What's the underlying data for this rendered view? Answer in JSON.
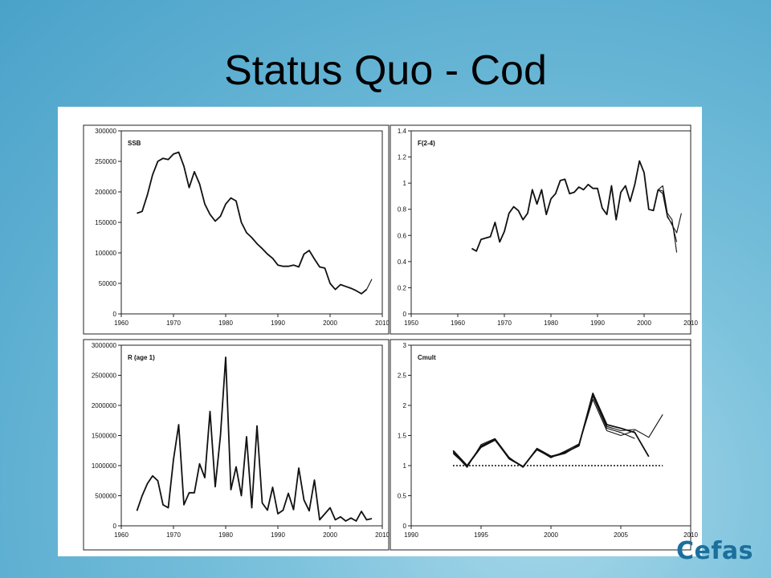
{
  "slide": {
    "title": "Status Quo - Cod",
    "logo_text": "Cefas"
  },
  "chart_data": [
    {
      "type": "line",
      "label": "SSB",
      "ylim": [
        0,
        300000
      ],
      "xlim": [
        1960,
        2010
      ],
      "xticks": [
        1960,
        1970,
        1980,
        1990,
        2000,
        2010
      ],
      "yticks": [
        "0",
        "50000",
        "100000",
        "150000",
        "200000",
        "250000",
        "300000"
      ],
      "ytick_values": [
        0,
        50000,
        100000,
        150000,
        200000,
        250000,
        300000
      ],
      "series": [
        {
          "x": [
            1963,
            1964,
            1965,
            1966,
            1967,
            1968,
            1969,
            1970,
            1971,
            1972,
            1973,
            1974,
            1975,
            1976,
            1977,
            1978,
            1979,
            1980,
            1981,
            1982,
            1983,
            1984,
            1985,
            1986,
            1987,
            1988,
            1989,
            1990,
            1991,
            1992,
            1993,
            1994,
            1995,
            1996,
            1997,
            1998,
            1999,
            2000,
            2001,
            2002,
            2003,
            2004,
            2005,
            2006,
            2007
          ],
          "y": [
            165000,
            168000,
            195000,
            228000,
            250000,
            255000,
            253000,
            262000,
            265000,
            242000,
            207000,
            233000,
            213000,
            180000,
            163000,
            152000,
            160000,
            180000,
            190000,
            185000,
            150000,
            133000,
            125000,
            115000,
            107000,
            98000,
            91000,
            80000,
            78000,
            78000,
            80000,
            77000,
            98000,
            104000,
            90000,
            77000,
            75000,
            50000,
            40000,
            48000,
            45000,
            42000,
            38000,
            33000,
            40000
          ]
        },
        {
          "x": [
            2007,
            2008
          ],
          "y": [
            40000,
            57000
          ]
        }
      ]
    },
    {
      "type": "line",
      "label": "F(2-4)",
      "ylim": [
        0,
        1.4
      ],
      "xlim": [
        1950,
        2010
      ],
      "xticks": [
        1950,
        1960,
        1970,
        1980,
        1990,
        2000,
        2010
      ],
      "yticks": [
        "0",
        "0.2",
        "0.4",
        "0.6",
        "0.8",
        "1",
        "1.2",
        "1.4"
      ],
      "ytick_values": [
        0,
        0.2,
        0.4,
        0.6,
        0.8,
        1.0,
        1.2,
        1.4
      ],
      "series": [
        {
          "x": [
            1963,
            1964,
            1965,
            1966,
            1967,
            1968,
            1969,
            1970,
            1971,
            1972,
            1973,
            1974,
            1975,
            1976,
            1977,
            1978,
            1979,
            1980,
            1981,
            1982,
            1983,
            1984,
            1985,
            1986,
            1987,
            1988,
            1989,
            1990,
            1991,
            1992,
            1993,
            1994,
            1995,
            1996,
            1997,
            1998,
            1999,
            2000,
            2001,
            2002,
            2003
          ],
          "y": [
            0.5,
            0.48,
            0.57,
            0.58,
            0.59,
            0.7,
            0.55,
            0.63,
            0.77,
            0.82,
            0.79,
            0.72,
            0.77,
            0.95,
            0.84,
            0.95,
            0.76,
            0.88,
            0.92,
            1.02,
            1.03,
            0.92,
            0.93,
            0.97,
            0.95,
            0.99,
            0.96,
            0.96,
            0.81,
            0.76,
            0.98,
            0.72,
            0.93,
            0.98,
            0.86,
            0.99,
            1.17,
            1.08,
            0.8,
            0.79,
            0.95
          ]
        },
        {
          "x": [
            2003,
            2004,
            2005,
            2006,
            2007
          ],
          "y": [
            0.95,
            0.98,
            0.77,
            0.72,
            0.47
          ]
        },
        {
          "x": [
            2003,
            2004,
            2005,
            2006,
            2007
          ],
          "y": [
            0.95,
            0.92,
            0.74,
            0.69,
            0.55
          ]
        },
        {
          "x": [
            2003,
            2004,
            2005,
            2006,
            2007,
            2008
          ],
          "y": [
            0.95,
            0.94,
            0.75,
            0.68,
            0.62,
            0.77
          ]
        }
      ]
    },
    {
      "type": "line",
      "label": "R (age 1)",
      "ylim": [
        0,
        3000000
      ],
      "xlim": [
        1960,
        2010
      ],
      "xticks": [
        1960,
        1970,
        1980,
        1990,
        2000,
        2010
      ],
      "yticks": [
        "0",
        "500000",
        "1000000",
        "1500000",
        "2000000",
        "2500000",
        "3000000"
      ],
      "ytick_values": [
        0,
        500000,
        1000000,
        1500000,
        2000000,
        2500000,
        3000000
      ],
      "series": [
        {
          "x": [
            1963,
            1964,
            1965,
            1966,
            1967,
            1968,
            1969,
            1970,
            1971,
            1972,
            1973,
            1974,
            1975,
            1976,
            1977,
            1978,
            1979,
            1980,
            1981,
            1982,
            1983,
            1984,
            1985,
            1986,
            1987,
            1988,
            1989,
            1990,
            1991,
            1992,
            1993,
            1994,
            1995,
            1996,
            1997,
            1998,
            1999,
            2000,
            2001,
            2002,
            2003,
            2004,
            2005,
            2006,
            2007,
            2008
          ],
          "y": [
            250000,
            500000,
            700000,
            830000,
            750000,
            350000,
            300000,
            1100000,
            1680000,
            350000,
            550000,
            550000,
            1030000,
            800000,
            1900000,
            650000,
            1500000,
            2800000,
            600000,
            980000,
            500000,
            1480000,
            300000,
            1660000,
            380000,
            260000,
            640000,
            200000,
            260000,
            540000,
            270000,
            960000,
            430000,
            250000,
            760000,
            100000,
            200000,
            300000,
            100000,
            150000,
            80000,
            130000,
            80000,
            240000,
            100000,
            120000
          ]
        }
      ]
    },
    {
      "type": "line",
      "label": "Cmult",
      "ylim": [
        0,
        3
      ],
      "xlim": [
        1990,
        2010
      ],
      "xticks": [
        1990,
        1995,
        2000,
        2005,
        2010
      ],
      "yticks": [
        "0",
        "0.5",
        "1",
        "1.5",
        "2",
        "2.5",
        "3"
      ],
      "ytick_values": [
        0,
        0.5,
        1.0,
        1.5,
        2.0,
        2.5,
        3.0
      ],
      "reference_line": {
        "y": 1.0,
        "x": [
          1993,
          2008
        ],
        "style": "dotted"
      },
      "series": [
        {
          "x": [
            1993,
            1994,
            1995,
            1996,
            1997,
            1998,
            1999,
            2000,
            2001,
            2002,
            2003,
            2004,
            2005,
            2006,
            2007
          ],
          "y": [
            1.25,
            1.0,
            1.32,
            1.43,
            1.12,
            0.98,
            1.28,
            1.15,
            1.22,
            1.33,
            2.2,
            1.68,
            1.62,
            1.55,
            1.15
          ]
        },
        {
          "x": [
            1993,
            1994,
            1995,
            1996,
            1997,
            1998,
            1999,
            2000,
            2001,
            2002,
            2003,
            2004,
            2005,
            2006
          ],
          "y": [
            1.22,
            0.97,
            1.35,
            1.45,
            1.14,
            0.97,
            1.27,
            1.13,
            1.24,
            1.36,
            2.15,
            1.62,
            1.55,
            1.45
          ]
        },
        {
          "x": [
            1993,
            1994,
            1995,
            1996,
            1997,
            1998,
            1999,
            2000,
            2001,
            2002,
            2003,
            2004,
            2005,
            2006
          ],
          "y": [
            1.2,
            0.99,
            1.3,
            1.42,
            1.13,
            0.99,
            1.26,
            1.14,
            1.2,
            1.34,
            2.1,
            1.58,
            1.5,
            1.58
          ]
        },
        {
          "x": [
            1993,
            1994,
            1995,
            1996,
            1997,
            1998,
            1999,
            2000,
            2001,
            2002,
            2003,
            2004,
            2005,
            2006,
            2007,
            2008
          ],
          "y": [
            1.23,
            0.98,
            1.33,
            1.44,
            1.11,
            0.98,
            1.29,
            1.16,
            1.21,
            1.35,
            2.18,
            1.65,
            1.58,
            1.6,
            1.47,
            1.85
          ]
        }
      ]
    }
  ]
}
